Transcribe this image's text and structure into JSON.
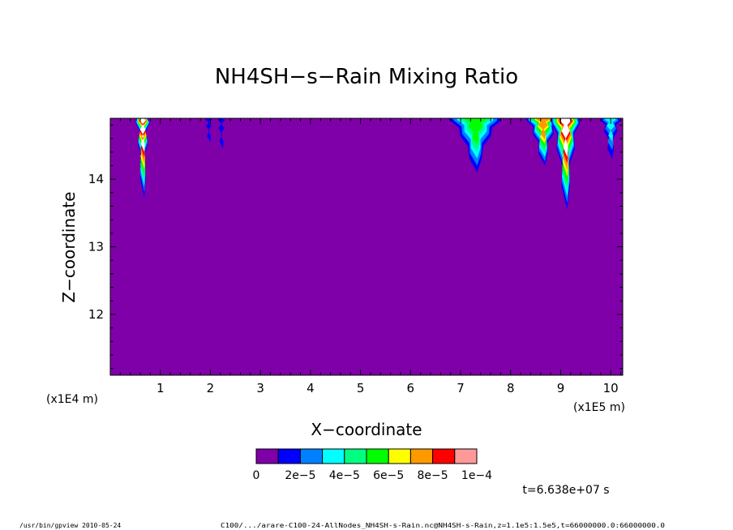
{
  "chart_data": {
    "type": "heatmap",
    "title": "NH4SH−s−Rain Mixing Ratio",
    "xlabel": "X−coordinate",
    "ylabel": "Z−coordinate",
    "x_scale_label": "(x1E5 m)",
    "y_scale_label": "(x1E4 m)",
    "xlim": [
      0.0,
      10.24
    ],
    "ylim": [
      11.1,
      14.9
    ],
    "x_ticks": [
      1,
      2,
      3,
      4,
      5,
      6,
      7,
      8,
      9,
      10
    ],
    "y_ticks": [
      12,
      13,
      14
    ],
    "background_color": "#7f00a8",
    "colorbar": {
      "colors": [
        "#7f00a8",
        "#0000ff",
        "#0080ff",
        "#00ffff",
        "#00ff80",
        "#00ff00",
        "#ffff00",
        "#ff9900",
        "#ff0000",
        "#ff9999"
      ],
      "labels": [
        "0",
        "2e−5",
        "4e−5",
        "6e−5",
        "8e−5",
        "1e−4"
      ]
    },
    "features": [
      {
        "x_center": 0.65,
        "half_width": 0.13,
        "min_z": 13.72,
        "peak": "1e-4+"
      },
      {
        "x_center": 1.97,
        "half_width": 0.05,
        "min_z": 14.55,
        "peak": "2e-5"
      },
      {
        "x_center": 2.22,
        "half_width": 0.05,
        "min_z": 14.45,
        "peak": "2e-5"
      },
      {
        "x_center": 7.3,
        "half_width": 0.55,
        "min_z": 14.1,
        "peak": "6e-5"
      },
      {
        "x_center": 8.65,
        "half_width": 0.35,
        "min_z": 14.2,
        "peak": "8e-5"
      },
      {
        "x_center": 9.1,
        "half_width": 0.3,
        "min_z": 13.55,
        "peak": "1e-4+"
      },
      {
        "x_center": 10.0,
        "half_width": 0.2,
        "min_z": 14.3,
        "peak": "4e-5"
      }
    ],
    "time_label": "t=6.638e+07 s"
  },
  "footer": {
    "program": "/usr/bin/gpview  2010-05-24",
    "file": "C100/.../arare-C100-24-AllNodes_NH4SH-s-Rain.nc@NH4SH-s-Rain,z=1.1e5:1.5e5,t=66000000.0:66000000.0"
  }
}
